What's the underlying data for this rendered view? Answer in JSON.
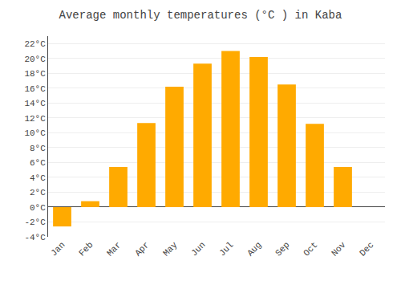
{
  "chart_data": {
    "type": "bar",
    "title": "Average monthly temperatures (°C ) in Kaba",
    "categories": [
      "Jan",
      "Feb",
      "Mar",
      "Apr",
      "May",
      "Jun",
      "Jul",
      "Aug",
      "Sep",
      "Oct",
      "Nov",
      "Dec"
    ],
    "values": [
      -2.6,
      0.8,
      5.4,
      11.3,
      16.2,
      19.3,
      21.0,
      20.2,
      16.5,
      11.2,
      5.4,
      0.0
    ],
    "color": "#FFAA00",
    "ylim": [
      -4,
      23
    ],
    "yticks": [
      {
        "value": -4,
        "label": "-4°C"
      },
      {
        "value": -2,
        "label": "-2°C"
      },
      {
        "value": 0,
        "label": "0°C"
      },
      {
        "value": 2,
        "label": "2°C"
      },
      {
        "value": 4,
        "label": "4°C"
      },
      {
        "value": 6,
        "label": "6°C"
      },
      {
        "value": 8,
        "label": "8°C"
      },
      {
        "value": 10,
        "label": "10°C"
      },
      {
        "value": 12,
        "label": "12°C"
      },
      {
        "value": 14,
        "label": "14°C"
      },
      {
        "value": 16,
        "label": "16°C"
      },
      {
        "value": 18,
        "label": "18°C"
      },
      {
        "value": 20,
        "label": "20°C"
      },
      {
        "value": 22,
        "label": "22°C"
      }
    ],
    "grid": true
  }
}
